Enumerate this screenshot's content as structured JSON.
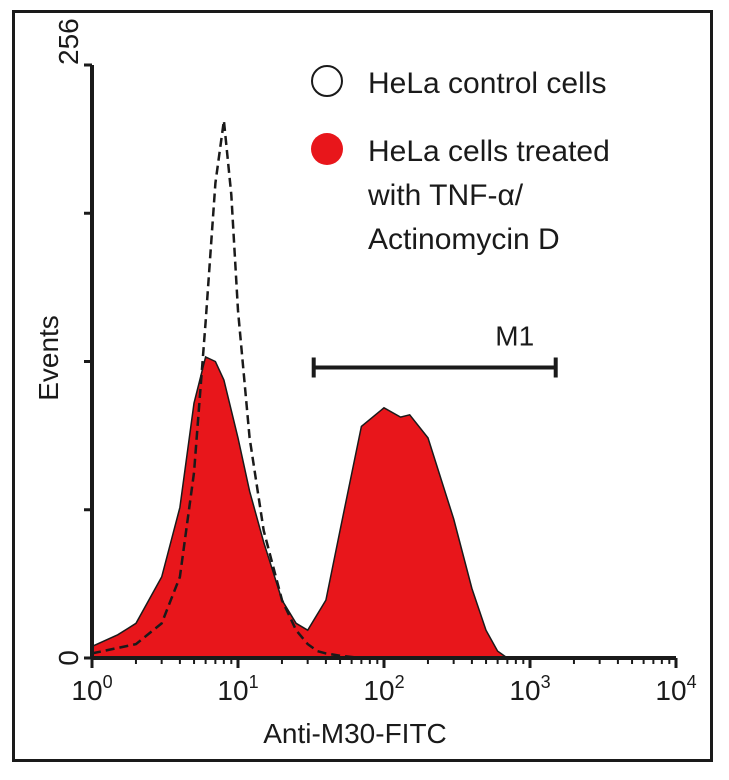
{
  "chart_data": {
    "type": "area",
    "xlabel": "Anti-M30-FITC",
    "ylabel": "Events",
    "x_scale": "log",
    "xlim": [
      1,
      10000
    ],
    "ylim": [
      0,
      256
    ],
    "x_ticks": [
      {
        "value": 1,
        "base": "10",
        "exp": "0"
      },
      {
        "value": 10,
        "base": "10",
        "exp": "1"
      },
      {
        "value": 100,
        "base": "10",
        "exp": "2"
      },
      {
        "value": 1000,
        "base": "10",
        "exp": "3"
      },
      {
        "value": 10000,
        "base": "10",
        "exp": "4"
      }
    ],
    "y_ticks": [
      {
        "value": 0,
        "label": "0"
      },
      {
        "value": 256,
        "label": "256"
      }
    ],
    "legend_position": "top-right",
    "series": [
      {
        "name": "HeLa control cells",
        "style": "outline-dashed",
        "color": "#1a1a1a",
        "x": [
          1,
          2,
          3,
          4,
          5,
          6,
          7,
          8,
          9,
          10,
          12,
          15,
          20,
          25,
          30,
          35,
          40,
          50,
          70,
          100,
          200,
          500
        ],
        "y": [
          2,
          6,
          15,
          35,
          80,
          145,
          205,
          232,
          200,
          150,
          95,
          55,
          25,
          12,
          6,
          3,
          2,
          1,
          0,
          0,
          0,
          0
        ]
      },
      {
        "name": "HeLa cells treated with TNF-α/ Actinomycin D",
        "legend_lines": [
          "HeLa cells treated",
          "with TNF-α/",
          "Actinomycin D"
        ],
        "style": "filled",
        "color": "#e8161b",
        "x": [
          1,
          1.5,
          2,
          3,
          4,
          5,
          6,
          7,
          8,
          10,
          12,
          15,
          20,
          25,
          30,
          40,
          50,
          70,
          100,
          130,
          150,
          200,
          300,
          400,
          500,
          600,
          700
        ],
        "y": [
          5,
          10,
          15,
          35,
          65,
          110,
          130,
          128,
          120,
          95,
          72,
          50,
          25,
          15,
          12,
          25,
          55,
          100,
          108,
          104,
          105,
          95,
          60,
          30,
          12,
          3,
          0
        ]
      }
    ],
    "annotations": [
      {
        "label": "M1",
        "type": "gate",
        "x_start": 33,
        "x_end": 1500,
        "y": 128
      }
    ]
  }
}
